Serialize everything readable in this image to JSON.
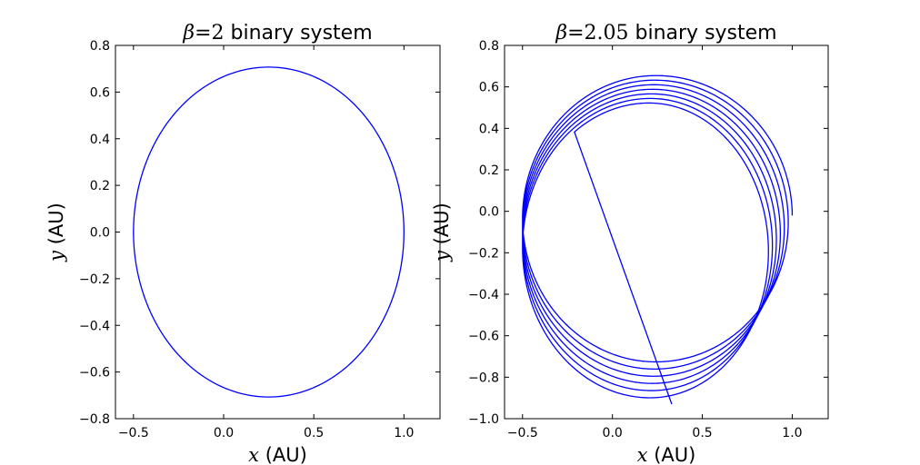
{
  "chart_data": [
    {
      "type": "line",
      "title_symbol": "β",
      "title_value": "=2",
      "title_text": " binary system",
      "xlabel_symbol": "x",
      "xlabel_text": " (AU)",
      "ylabel_symbol": "y",
      "ylabel_text": " (AU)",
      "xlim": [
        -0.6,
        1.2
      ],
      "ylim": [
        -0.8,
        0.8
      ],
      "xticks": [
        -0.5,
        0.0,
        0.5,
        1.0
      ],
      "xtick_labels": [
        "−0.5",
        "0.0",
        "0.5",
        "1.0"
      ],
      "yticks": [
        -0.8,
        -0.6,
        -0.4,
        -0.2,
        0.0,
        0.2,
        0.4,
        0.6,
        0.8
      ],
      "ytick_labels": [
        "−0.8",
        "−0.6",
        "−0.4",
        "−0.2",
        "0.0",
        "0.2",
        "0.4",
        "0.6",
        "0.8"
      ],
      "series": [
        {
          "name": "orbit",
          "color": "#0000ff",
          "ellipse": {
            "center_x": 0.25,
            "center_y": 0.0,
            "semi_axis_x": 0.75,
            "semi_axis_y": 0.707,
            "loops": 1
          }
        }
      ]
    },
    {
      "type": "line",
      "title_symbol": "β",
      "title_value": "=2.05",
      "title_text": " binary system",
      "xlabel_symbol": "x",
      "xlabel_text": " (AU)",
      "ylabel_symbol": "y",
      "ylabel_text": " (AU)",
      "xlim": [
        -0.6,
        1.2
      ],
      "ylim": [
        -1.0,
        0.8
      ],
      "xticks": [
        -0.5,
        0.0,
        0.5,
        1.0
      ],
      "xtick_labels": [
        "−0.5",
        "0.0",
        "0.5",
        "1.0"
      ],
      "yticks": [
        -1.0,
        -0.8,
        -0.6,
        -0.4,
        -0.2,
        0.0,
        0.2,
        0.4,
        0.6,
        0.8
      ],
      "ytick_labels": [
        "−1.0",
        "−0.8",
        "−0.6",
        "−0.4",
        "−0.2",
        "0.0",
        "0.2",
        "0.4",
        "0.6",
        "0.8"
      ],
      "series": [
        {
          "name": "precessing orbit",
          "color": "#0000ff",
          "spiral": {
            "start_x": 1.0,
            "start_y": 0.0,
            "periapsis_x": -0.5,
            "loops": 6.35,
            "top_y_first": 0.66,
            "top_y_last": 0.52,
            "bottom_y_first": -0.7,
            "bottom_y_last": -0.92,
            "center_x_first": 0.24,
            "center_x_last": 0.2,
            "right_x_first": 1.0,
            "right_x_last": 0.86,
            "end_x": 0.33,
            "end_y": -0.93
          }
        }
      ]
    }
  ]
}
